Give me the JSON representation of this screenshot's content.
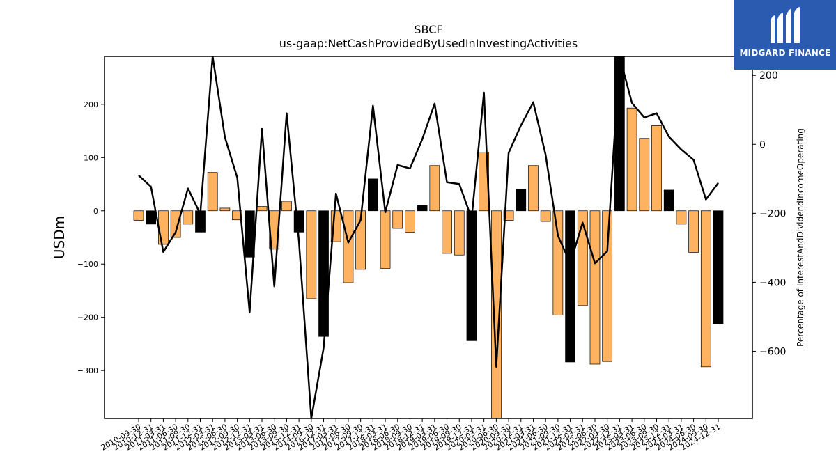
{
  "brand": {
    "name": "MIDGARD FINANCE",
    "accent": "#2a5bb0"
  },
  "chart_data": {
    "type": "bar",
    "title": "SBCF",
    "subtitle": "us-gaap:NetCashProvidedByUsedInInvestingActivities",
    "ylabel": "USDm",
    "y2label": "Percentage of InterestAndDividendIncomeOperating",
    "ylim": [
      -390,
      290
    ],
    "y2lim": [
      -795,
      255
    ],
    "yticks": [
      -300,
      -200,
      -100,
      0,
      100,
      200
    ],
    "y2ticks": [
      -600,
      -400,
      -200,
      0,
      200
    ],
    "grid": false,
    "colors": {
      "positive_q4": "#000000",
      "other": "#ffb361"
    },
    "categories": [
      "2010-09-30",
      "2010-12-31",
      "2011-03-31",
      "2011-06-30",
      "2011-09-30",
      "2011-12-31",
      "2012-03-31",
      "2012-06-30",
      "2012-09-30",
      "2012-12-31",
      "2013-03-31",
      "2013-06-30",
      "2013-09-30",
      "2013-12-31",
      "2014-09-30",
      "2016-12-31",
      "2017-03-31",
      "2017-06-30",
      "2017-09-30",
      "2017-12-31",
      "2018-03-31",
      "2018-06-30",
      "2018-09-30",
      "2018-12-31",
      "2019-03-31",
      "2019-06-30",
      "2019-09-30",
      "2019-12-31",
      "2020-03-31",
      "2020-06-30",
      "2020-09-30",
      "2020-12-31",
      "2021-03-31",
      "2021-06-30",
      "2021-09-30",
      "2021-12-31",
      "2022-03-31",
      "2022-06-30",
      "2022-09-30",
      "2022-12-31",
      "2023-03-31",
      "2023-06-30",
      "2023-09-30",
      "2023-12-31",
      "2024-03-31",
      "2024-06-30",
      "2024-09-30",
      "2024-12-31"
    ],
    "series": [
      {
        "kind": "bar",
        "axis": "left",
        "values": [
          -18,
          -25,
          -63,
          -50,
          -25,
          -40,
          72,
          5,
          -17,
          -87,
          8,
          -72,
          18,
          -40,
          -165,
          -236,
          -58,
          -135,
          -110,
          60,
          -108,
          -33,
          -40,
          10,
          85,
          -80,
          -83,
          -244,
          110,
          -390,
          -18,
          40,
          85,
          -20,
          -196,
          -284,
          -178,
          -288,
          -283,
          290,
          193,
          136,
          160,
          39,
          -25,
          -78,
          -293,
          -212
        ],
        "highlight": [
          false,
          true,
          false,
          false,
          false,
          true,
          false,
          false,
          false,
          true,
          false,
          false,
          false,
          true,
          false,
          true,
          false,
          false,
          false,
          true,
          false,
          false,
          false,
          true,
          false,
          false,
          false,
          true,
          false,
          false,
          false,
          true,
          false,
          false,
          false,
          true,
          false,
          false,
          false,
          true,
          false,
          false,
          false,
          true,
          false,
          false,
          false,
          true
        ]
      },
      {
        "kind": "line",
        "axis": "right",
        "values": [
          -90,
          -123,
          -312,
          -255,
          -128,
          -202,
          255,
          20,
          -97,
          -487,
          45,
          -412,
          90,
          -282,
          -795,
          -590,
          -143,
          -285,
          -220,
          112,
          -197,
          -60,
          -70,
          15,
          118,
          -110,
          -115,
          -215,
          150,
          -645,
          -25,
          55,
          122,
          -30,
          -265,
          -345,
          -227,
          -345,
          -310,
          255,
          120,
          78,
          90,
          22,
          -15,
          -45,
          -160,
          -112
        ]
      }
    ]
  }
}
